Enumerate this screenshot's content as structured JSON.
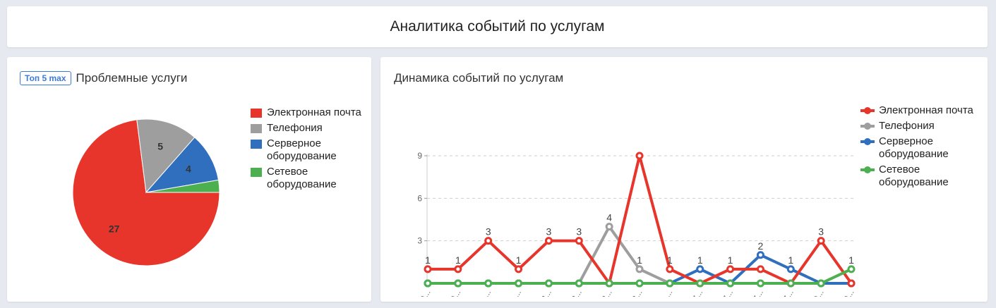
{
  "header": {
    "title": "Аналитика событий по услугам"
  },
  "left_panel": {
    "badge": "Топ 5 max",
    "title": "Проблемные услуги"
  },
  "right_panel": {
    "title": "Динамика событий по услугам"
  },
  "colors": {
    "email": "#e8352b",
    "telephony": "#9e9e9e",
    "server": "#2f6fbe",
    "network": "#4caf50"
  },
  "chart_data": [
    {
      "type": "pie",
      "labels": [
        "Электронная почта",
        "Телефония",
        "Серверное оборудование",
        "Сетевое оборудование"
      ],
      "values": [
        27,
        5,
        4,
        1
      ],
      "data_labels": [
        "27",
        "5",
        "4",
        ""
      ],
      "colors": [
        "#e8352b",
        "#9e9e9e",
        "#2f6fbe",
        "#4caf50"
      ],
      "legend": "right"
    },
    {
      "type": "line",
      "x": [
        "11.09...",
        "21.09...",
        "21.01...",
        "26.01...",
        "05.02...",
        "08.02...",
        "09.02...",
        "10.02...",
        "24.01...",
        "17.07...",
        "18.07...",
        "19.07...",
        "24.07...",
        "03.10...",
        "04.10..."
      ],
      "yticks": [
        3,
        6,
        9
      ],
      "ylim": [
        0,
        9
      ],
      "grid": true,
      "legend": "right",
      "series": [
        {
          "name": "Электронная почта",
          "color": "#e8352b",
          "values": [
            1,
            1,
            3,
            1,
            3,
            3,
            0,
            9,
            1,
            0,
            1,
            1,
            0,
            3,
            0
          ]
        },
        {
          "name": "Телефония",
          "color": "#9e9e9e",
          "values": [
            0,
            0,
            0,
            0,
            0,
            0,
            4,
            1,
            0,
            0,
            0,
            0,
            0,
            0,
            0
          ]
        },
        {
          "name": "Серверное оборудование",
          "color": "#2f6fbe",
          "values": [
            0,
            0,
            0,
            0,
            0,
            0,
            0,
            0,
            0,
            1,
            0,
            2,
            1,
            0,
            0
          ]
        },
        {
          "name": "Сетевое оборудование",
          "color": "#4caf50",
          "values": [
            0,
            0,
            0,
            0,
            0,
            0,
            0,
            0,
            0,
            0,
            0,
            0,
            0,
            0,
            1
          ]
        }
      ],
      "point_labels": [
        {
          "i": 0,
          "text": "1",
          "series": 0
        },
        {
          "i": 1,
          "text": "1",
          "series": 0
        },
        {
          "i": 2,
          "text": "3",
          "series": 0
        },
        {
          "i": 3,
          "text": "1",
          "series": 0
        },
        {
          "i": 4,
          "text": "3",
          "series": 0
        },
        {
          "i": 5,
          "text": "3",
          "series": 0
        },
        {
          "i": 6,
          "text": "4",
          "series": 1
        },
        {
          "i": 7,
          "text": "1",
          "series": 1
        },
        {
          "i": 8,
          "text": "1",
          "series": 0
        },
        {
          "i": 9,
          "text": "1",
          "series": 2
        },
        {
          "i": 10,
          "text": "1",
          "series": 0
        },
        {
          "i": 11,
          "text": "2",
          "series": 2
        },
        {
          "i": 12,
          "text": "1",
          "series": 2
        },
        {
          "i": 13,
          "text": "3",
          "series": 0
        },
        {
          "i": 14,
          "text": "1",
          "series": 3
        }
      ]
    }
  ]
}
